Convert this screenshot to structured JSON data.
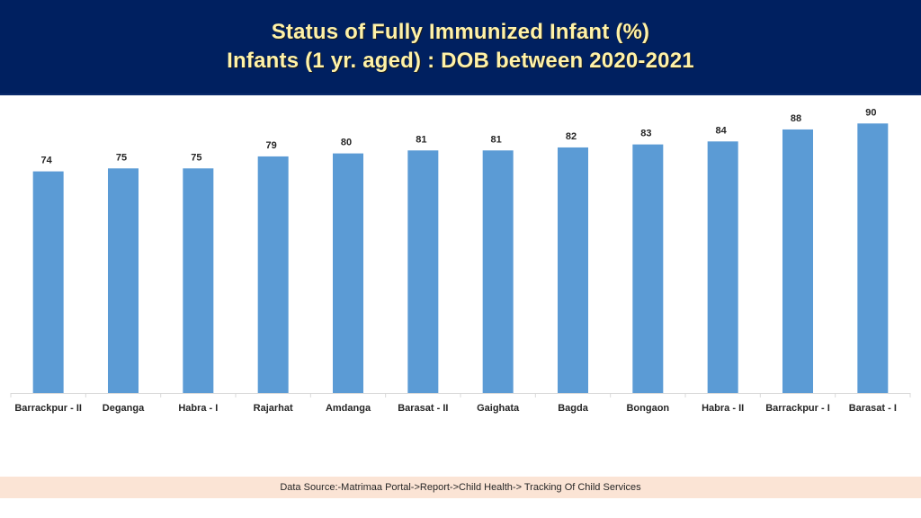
{
  "header": {
    "title_line1": "Status of Fully Immunized Infant (%)",
    "title_line2": "Infants (1 yr. aged) : DOB between 2020-2021"
  },
  "chart_data": {
    "type": "bar",
    "title": "Status of Fully Immunized Infant (%) Infants (1 yr. aged) : DOB between 2020-2021",
    "xlabel": "",
    "ylabel": "",
    "ylim": [
      0,
      100
    ],
    "grid": false,
    "legend": "none",
    "bar_color": "#5b9bd5",
    "categories": [
      "Barrackpur - II",
      "Deganga",
      "Habra - I",
      "Rajarhat",
      "Amdanga",
      "Barasat - II",
      "Gaighata",
      "Bagda",
      "Bongaon",
      "Habra - II",
      "Barrackpur - I",
      "Barasat - I"
    ],
    "values": [
      74,
      75,
      75,
      79,
      80,
      81,
      81,
      82,
      83,
      84,
      88,
      90
    ]
  },
  "footer": {
    "source": "Data Source:-Matrimaa Portal->Report->Child Health-> Tracking Of Child Services"
  }
}
